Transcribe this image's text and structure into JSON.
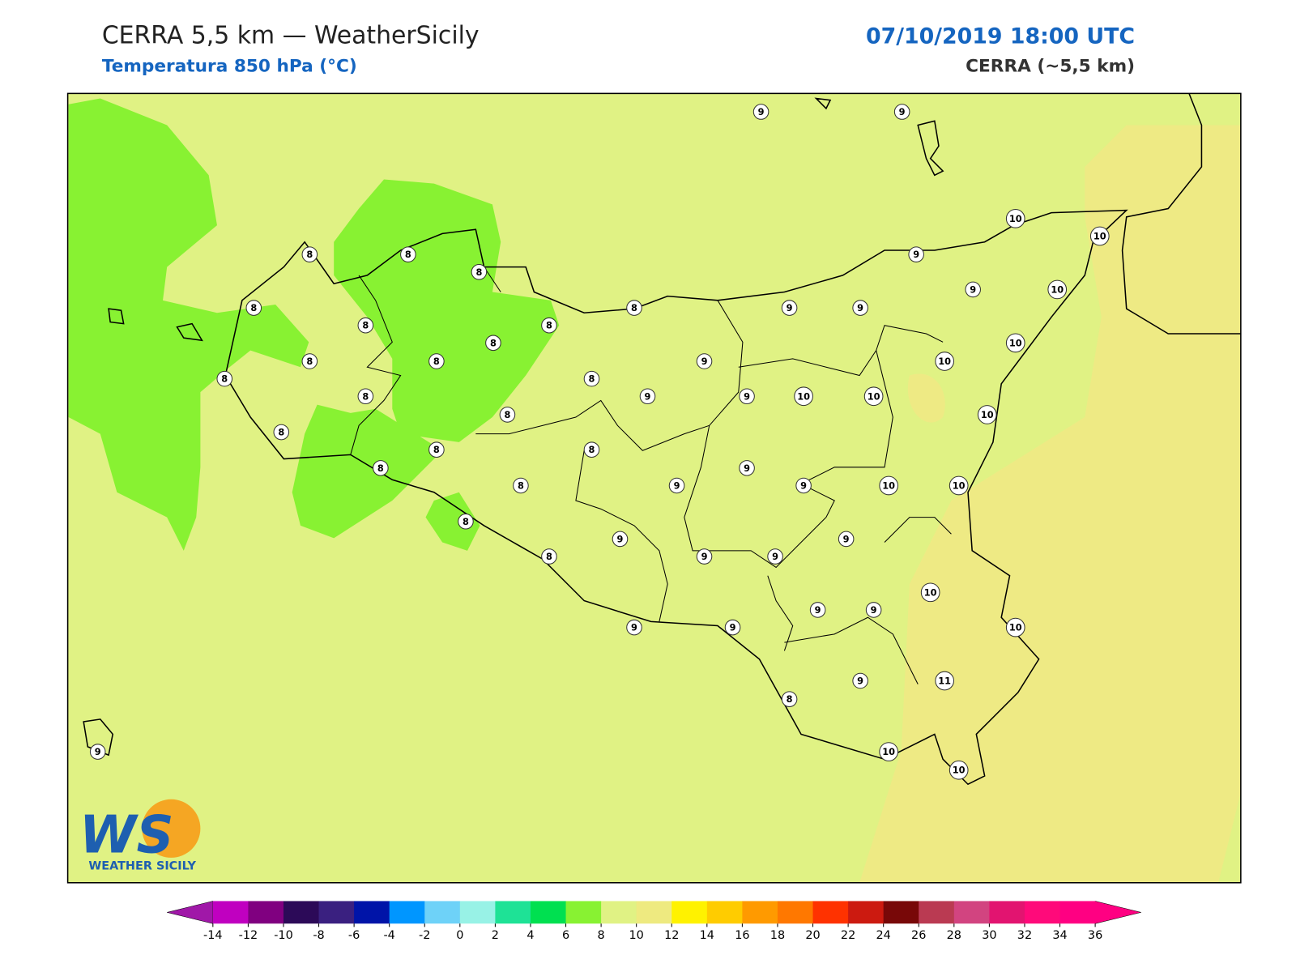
{
  "header": {
    "title": "CERRA 5,5 km — WeatherSicily",
    "subtitle": "Temperatura 850 hPa (°C)",
    "datetime": "07/10/2019 18:00 UTC",
    "source": "CERRA (~5,5 km)"
  },
  "logo": {
    "letters": "WS",
    "name": "WEATHER SICILY"
  },
  "stations": {
    "values": [
      9,
      9,
      10,
      10,
      9,
      8,
      8,
      8,
      8,
      8,
      9,
      9,
      9,
      10,
      8,
      8,
      8,
      10,
      8,
      8,
      9,
      10,
      8,
      8,
      8,
      9,
      9,
      10,
      10,
      8,
      10,
      8,
      8,
      8,
      8,
      9,
      8,
      9,
      9,
      10,
      10,
      8,
      9,
      9,
      8,
      9,
      9,
      10,
      9,
      9,
      9,
      9,
      10,
      9,
      11,
      8,
      9,
      10,
      10
    ]
  },
  "colorbar": {
    "ticks": [
      -14,
      -12,
      -10,
      -8,
      -6,
      -4,
      -2,
      0,
      2,
      4,
      6,
      8,
      10,
      12,
      14,
      16,
      18,
      20,
      22,
      24,
      26,
      28,
      30,
      32,
      34,
      36
    ],
    "colors": [
      "#c000c0",
      "#800080",
      "#2c0a58",
      "#3a2080",
      "#0014a8",
      "#0096ff",
      "#6ed2f8",
      "#98f2e6",
      "#1ee296",
      "#00e050",
      "#88f232",
      "#e0f284",
      "#eeea80",
      "#fff200",
      "#ffcc00",
      "#ff9a00",
      "#ff7800",
      "#ff3200",
      "#cc1a10",
      "#780808",
      "#ba3a52",
      "#d24480",
      "#e21470",
      "#ff0a7a",
      "#ff0082"
    ],
    "under_color": "#a018a8",
    "over_color": "#ff0082"
  }
}
